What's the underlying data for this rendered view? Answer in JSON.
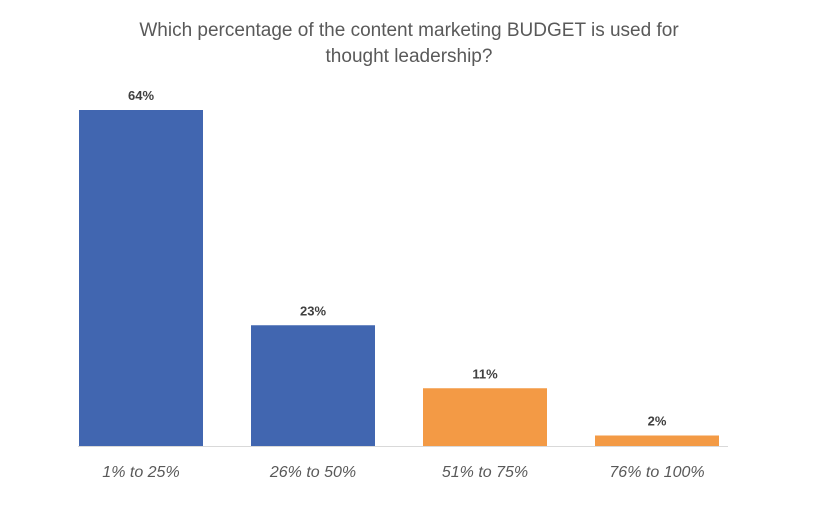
{
  "chart_data": {
    "type": "bar",
    "title_lines": [
      "Which percentage of the content marketing BUDGET is used for",
      "thought leadership?"
    ],
    "categories": [
      "1% to 25%",
      "26% to 50%",
      "51% to 75%",
      "76% to 100%"
    ],
    "values": [
      64,
      23,
      11,
      2
    ],
    "data_labels": [
      "64%",
      "23%",
      "11%",
      "2%"
    ],
    "bar_colors": [
      "#4166b0",
      "#4166b0",
      "#f39a45",
      "#f39a45"
    ],
    "xlabel": "",
    "ylabel": "",
    "ylim": [
      0,
      64
    ],
    "grid": false,
    "legend": "none"
  },
  "colors": {
    "title": "#595959",
    "data_label": "#404040",
    "category_label": "#595959",
    "baseline": "#d9d9d9"
  }
}
